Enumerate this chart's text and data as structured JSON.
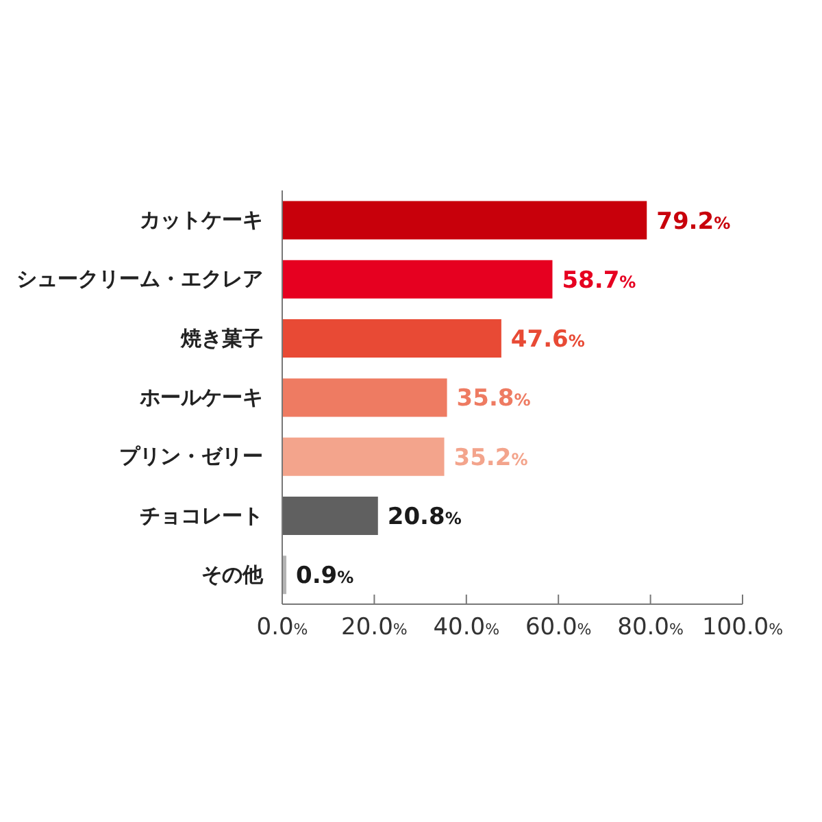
{
  "chart_data": {
    "type": "bar",
    "orientation": "horizontal",
    "categories": [
      "カットケーキ",
      "シュークリーム・エクレア",
      "焼き菓子",
      "ホールケーキ",
      "プリン・ゼリー",
      "チョコレート",
      "その他"
    ],
    "values": [
      79.2,
      58.7,
      47.6,
      35.8,
      35.2,
      20.8,
      0.9
    ],
    "colors": [
      "#c8000b",
      "#e60020",
      "#e84a35",
      "#ee7b62",
      "#f3a48c",
      "#606060",
      "#b4b4b4"
    ],
    "value_labels": [
      "79.2%",
      "58.7%",
      "47.6%",
      "35.8%",
      "35.2%",
      "20.8%",
      "0.9%"
    ],
    "xlim": [
      0,
      100
    ],
    "xticks": [
      {
        "value": 0,
        "label": "0.0%"
      },
      {
        "value": 20,
        "label": "20.0%"
      },
      {
        "value": 40,
        "label": "40.0%"
      },
      {
        "value": 60,
        "label": "60.0%"
      },
      {
        "value": 80,
        "label": "80.0%"
      },
      {
        "value": 100,
        "label": "100.0%"
      }
    ]
  }
}
